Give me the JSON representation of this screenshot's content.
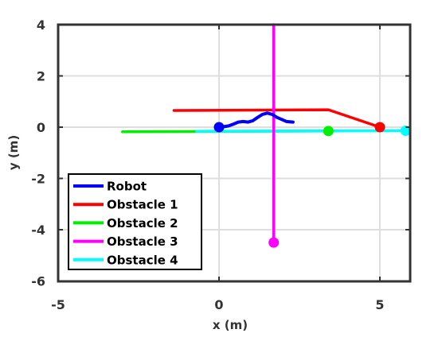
{
  "chart_data": {
    "type": "line",
    "xlabel": "x (m)",
    "ylabel": "y (m)",
    "xlim": [
      -5,
      5.8
    ],
    "ylim": [
      -6,
      4
    ],
    "xticks": [
      -5,
      0,
      5
    ],
    "yticks": [
      -6,
      -4,
      -2,
      0,
      2,
      4
    ],
    "xtick_labels": [
      "-5",
      "0",
      "5"
    ],
    "ytick_labels": [
      "-6",
      "-4",
      "-2",
      "0",
      "2",
      "4"
    ],
    "grid": true,
    "legend_position": "bottom-left",
    "series": [
      {
        "name": "Robot",
        "color": "#0000ff",
        "x": [
          0,
          0.15,
          0.3,
          0.45,
          0.6,
          0.75,
          0.9,
          1.05,
          1.2,
          1.35,
          1.5,
          1.65,
          1.8,
          1.95,
          2.1,
          2.3
        ],
        "y": [
          0,
          0.02,
          0.05,
          0.12,
          0.2,
          0.22,
          0.2,
          0.25,
          0.38,
          0.5,
          0.55,
          0.5,
          0.38,
          0.3,
          0.22,
          0.2
        ],
        "marker": {
          "x": 0,
          "y": 0
        }
      },
      {
        "name": "Obstacle 1",
        "color": "#ff0000",
        "x": [
          -1.4,
          3.4,
          5.0
        ],
        "y": [
          0.65,
          0.68,
          0.0
        ],
        "marker": {
          "x": 5.0,
          "y": 0.0
        }
      },
      {
        "name": "Obstacle 2",
        "color": "#00ee00",
        "x": [
          -3.0,
          3.4
        ],
        "y": [
          -0.18,
          -0.15
        ],
        "marker": {
          "x": 3.4,
          "y": -0.15
        }
      },
      {
        "name": "Obstacle 3",
        "color": "#ff00ff",
        "x": [
          1.7,
          1.7
        ],
        "y": [
          4.0,
          -4.5
        ],
        "marker": {
          "x": 1.7,
          "y": -4.5
        }
      },
      {
        "name": "Obstacle 4",
        "color": "#00ffff",
        "x": [
          -0.7,
          5.8
        ],
        "y": [
          -0.16,
          -0.14
        ],
        "marker": {
          "x": 5.8,
          "y": -0.14
        }
      }
    ]
  }
}
